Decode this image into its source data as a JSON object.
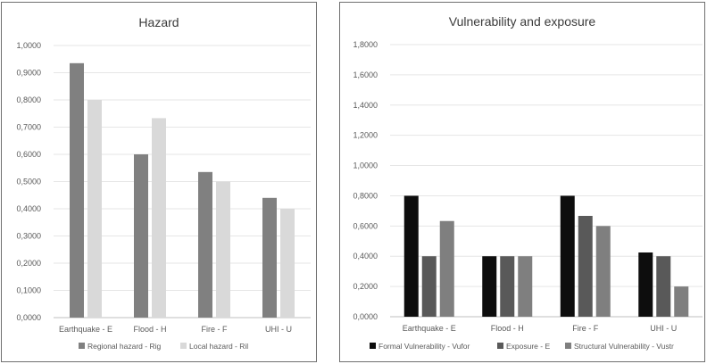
{
  "chart_data": [
    {
      "type": "bar",
      "title": "Hazard",
      "categories": [
        "Earthquake - E",
        "Flood - H",
        "Fire - F",
        "UHI - U"
      ],
      "series": [
        {
          "name": "Regional hazard - Rig",
          "color": "#808080",
          "values": [
            0.935,
            0.6,
            0.535,
            0.44
          ]
        },
        {
          "name": "Local hazard - Ril",
          "color": "#d9d9d9",
          "values": [
            0.8,
            0.733,
            0.5,
            0.4
          ]
        }
      ],
      "ylim": [
        0,
        1
      ],
      "yticks": [
        "0,0000",
        "0,1000",
        "0,2000",
        "0,3000",
        "0,4000",
        "0,5000",
        "0,6000",
        "0,7000",
        "0,8000",
        "0,9000",
        "1,0000"
      ],
      "grid": true,
      "legend": "bottom"
    },
    {
      "type": "bar",
      "title": "Vulnerability and exposure",
      "categories": [
        "Earthquake - E",
        "Flood - H",
        "Fire - F",
        "UHI - U"
      ],
      "series": [
        {
          "name": "Formal Vulnerability - Vufor",
          "color": "#0d0d0d",
          "values": [
            0.8,
            0.4,
            0.8,
            0.425
          ]
        },
        {
          "name": "Exposure - E",
          "color": "#595959",
          "values": [
            0.4,
            0.4,
            0.667,
            0.4
          ]
        },
        {
          "name": "Structural Vulnerability - Vustr",
          "color": "#7f7f7f",
          "values": [
            0.633,
            0.4,
            0.6,
            0.2
          ]
        }
      ],
      "ylim": [
        0,
        1.8
      ],
      "yticks": [
        "0,0000",
        "0,2000",
        "0,4000",
        "0,6000",
        "0,8000",
        "1,0000",
        "1,2000",
        "1,4000",
        "1,6000",
        "1,8000"
      ],
      "grid": true,
      "legend": "bottom"
    }
  ]
}
